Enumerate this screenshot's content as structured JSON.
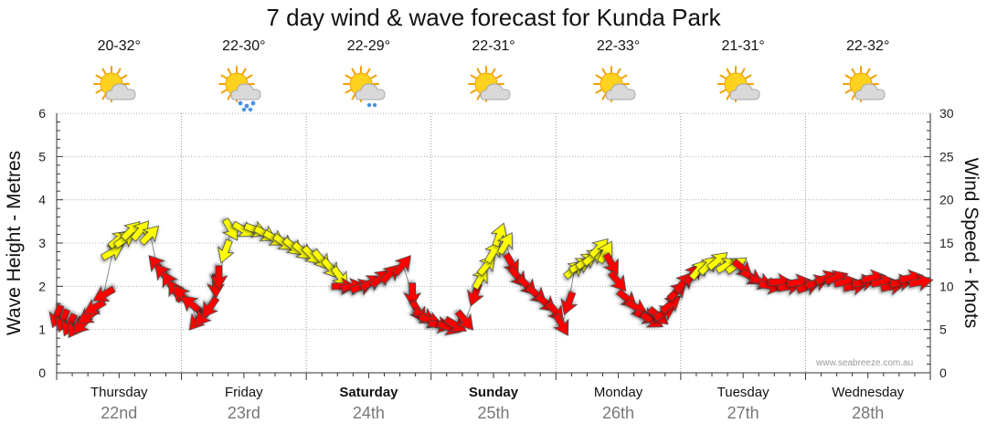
{
  "chart_data": {
    "type": "line",
    "title": "7 day wind & wave forecast for Kunda Park",
    "ylabel_left": "Wave Height - Metres",
    "ylabel_right": "Wind Speed - Knots",
    "ylim_left": [
      0,
      6
    ],
    "ylim_right": [
      0,
      30
    ],
    "yticks_left": [
      "0",
      "1",
      "2",
      "3",
      "4",
      "5",
      "6"
    ],
    "yticks_right": [
      "0",
      "5",
      "10",
      "15",
      "20",
      "25",
      "30"
    ],
    "grid": true,
    "days": [
      {
        "name": "Thursday",
        "date": "22nd",
        "bold": false,
        "temp": "20-32°",
        "weather": "partly-cloudy"
      },
      {
        "name": "Friday",
        "date": "23rd",
        "bold": false,
        "temp": "22-30°",
        "weather": "showers"
      },
      {
        "name": "Saturday",
        "date": "24th",
        "bold": true,
        "temp": "22-29°",
        "weather": "light-rain"
      },
      {
        "name": "Sunday",
        "date": "25th",
        "bold": true,
        "temp": "22-31°",
        "weather": "partly-cloudy"
      },
      {
        "name": "Monday",
        "date": "26th",
        "bold": false,
        "temp": "22-33°",
        "weather": "partly-cloudy"
      },
      {
        "name": "Tuesday",
        "date": "27th",
        "bold": false,
        "temp": "21-31°",
        "weather": "partly-cloudy"
      },
      {
        "name": "Wednesday",
        "date": "28th",
        "bold": false,
        "temp": "22-32°",
        "weather": "partly-cloudy"
      }
    ],
    "wind_series": {
      "name": "Wind Speed",
      "unit": "knots",
      "colors": {
        "light": "#ffff00",
        "strong": "#ff0000"
      },
      "points": [
        {
          "t": 0.0,
          "knots": 6.5,
          "dir": 200,
          "band": "strong"
        },
        {
          "t": 0.1,
          "knots": 6.0,
          "dir": 200,
          "band": "strong"
        },
        {
          "t": 0.2,
          "knots": 5.5,
          "dir": 205,
          "band": "strong"
        },
        {
          "t": 0.3,
          "knots": 5.2,
          "dir": 215,
          "band": "strong"
        },
        {
          "t": 0.4,
          "knots": 5.5,
          "dir": 225,
          "band": "strong"
        },
        {
          "t": 0.5,
          "knots": 6.5,
          "dir": 235,
          "band": "strong"
        },
        {
          "t": 0.6,
          "knots": 7.5,
          "dir": 240,
          "band": "strong"
        },
        {
          "t": 0.75,
          "knots": 9.0,
          "dir": 240,
          "band": "strong"
        },
        {
          "t": 0.9,
          "knots": 14.0,
          "dir": 60,
          "band": "light"
        },
        {
          "t": 1.0,
          "knots": 15.5,
          "dir": 50,
          "band": "light"
        },
        {
          "t": 1.1,
          "knots": 15.5,
          "dir": 55,
          "band": "light"
        },
        {
          "t": 1.2,
          "knots": 16.5,
          "dir": 45,
          "band": "light"
        },
        {
          "t": 1.35,
          "knots": 16.5,
          "dir": 40,
          "band": "light"
        },
        {
          "t": 1.5,
          "knots": 16.0,
          "dir": 45,
          "band": "light"
        },
        {
          "t": 1.6,
          "knots": 12.5,
          "dir": 320,
          "band": "strong"
        },
        {
          "t": 1.7,
          "knots": 11.5,
          "dir": 320,
          "band": "strong"
        },
        {
          "t": 1.8,
          "knots": 10.5,
          "dir": 330,
          "band": "strong"
        },
        {
          "t": 1.9,
          "knots": 9.5,
          "dir": 330,
          "band": "strong"
        },
        {
          "t": 2.0,
          "knots": 9.0,
          "dir": 320,
          "band": "strong"
        },
        {
          "t": 2.15,
          "knots": 8.0,
          "dir": 310,
          "band": "strong"
        },
        {
          "t": 2.25,
          "knots": 6.0,
          "dir": 220,
          "band": "strong"
        },
        {
          "t": 2.35,
          "knots": 6.5,
          "dir": 220,
          "band": "strong"
        },
        {
          "t": 2.45,
          "knots": 7.5,
          "dir": 215,
          "band": "strong"
        },
        {
          "t": 2.55,
          "knots": 10.0,
          "dir": 180,
          "band": "strong"
        },
        {
          "t": 2.6,
          "knots": 11.0,
          "dir": 180,
          "band": "strong"
        },
        {
          "t": 2.7,
          "knots": 14.0,
          "dir": 200,
          "band": "light"
        },
        {
          "t": 2.8,
          "knots": 16.5,
          "dir": 150,
          "band": "light"
        },
        {
          "t": 3.0,
          "knots": 16.5,
          "dir": 120,
          "band": "light"
        },
        {
          "t": 3.2,
          "knots": 16.5,
          "dir": 110,
          "band": "light"
        },
        {
          "t": 3.35,
          "knots": 16.0,
          "dir": 120,
          "band": "light"
        },
        {
          "t": 3.5,
          "knots": 15.5,
          "dir": 120,
          "band": "light"
        },
        {
          "t": 3.65,
          "knots": 15.0,
          "dir": 125,
          "band": "light"
        },
        {
          "t": 3.8,
          "knots": 14.5,
          "dir": 130,
          "band": "light"
        },
        {
          "t": 3.95,
          "knots": 14.0,
          "dir": 130,
          "band": "light"
        },
        {
          "t": 4.1,
          "knots": 13.5,
          "dir": 135,
          "band": "light"
        },
        {
          "t": 4.25,
          "knots": 13.0,
          "dir": 140,
          "band": "light"
        },
        {
          "t": 4.4,
          "knots": 12.0,
          "dir": 140,
          "band": "light"
        },
        {
          "t": 4.55,
          "knots": 11.0,
          "dir": 145,
          "band": "light"
        },
        {
          "t": 4.6,
          "knots": 10.0,
          "dir": 90,
          "band": "strong"
        },
        {
          "t": 4.75,
          "knots": 10.0,
          "dir": 80,
          "band": "strong"
        },
        {
          "t": 4.9,
          "knots": 10.0,
          "dir": 70,
          "band": "strong"
        },
        {
          "t": 5.05,
          "knots": 10.5,
          "dir": 60,
          "band": "strong"
        },
        {
          "t": 5.2,
          "knots": 11.0,
          "dir": 50,
          "band": "strong"
        },
        {
          "t": 5.35,
          "knots": 11.5,
          "dir": 45,
          "band": "strong"
        },
        {
          "t": 5.55,
          "knots": 12.5,
          "dir": 40,
          "band": "strong"
        },
        {
          "t": 5.7,
          "knots": 9.0,
          "dir": 180,
          "band": "strong"
        },
        {
          "t": 5.8,
          "knots": 7.0,
          "dir": 150,
          "band": "strong"
        },
        {
          "t": 5.9,
          "knots": 6.5,
          "dir": 120,
          "band": "strong"
        },
        {
          "t": 6.0,
          "knots": 6.0,
          "dir": 110,
          "band": "strong"
        },
        {
          "t": 6.15,
          "knots": 5.5,
          "dir": 100,
          "band": "strong"
        },
        {
          "t": 6.3,
          "knots": 5.2,
          "dir": 110,
          "band": "strong"
        },
        {
          "t": 6.4,
          "knots": 5.5,
          "dir": 120,
          "band": "strong"
        },
        {
          "t": 6.55,
          "knots": 6.0,
          "dir": 140,
          "band": "strong"
        },
        {
          "t": 6.7,
          "knots": 9.0,
          "dir": 200,
          "band": "strong"
        },
        {
          "t": 6.8,
          "knots": 11.0,
          "dir": 30,
          "band": "light"
        },
        {
          "t": 6.9,
          "knots": 12.5,
          "dir": 40,
          "band": "light"
        },
        {
          "t": 7.0,
          "knots": 14.0,
          "dir": 30,
          "band": "light"
        },
        {
          "t": 7.1,
          "knots": 16.0,
          "dir": 20,
          "band": "light"
        },
        {
          "t": 7.2,
          "knots": 15.0,
          "dir": 30,
          "band": "light"
        },
        {
          "t": 7.3,
          "knots": 12.5,
          "dir": 150,
          "band": "strong"
        },
        {
          "t": 7.4,
          "knots": 11.0,
          "dir": 140,
          "band": "strong"
        },
        {
          "t": 7.55,
          "knots": 10.0,
          "dir": 135,
          "band": "strong"
        },
        {
          "t": 7.7,
          "knots": 9.0,
          "dir": 130,
          "band": "strong"
        },
        {
          "t": 7.85,
          "knots": 8.0,
          "dir": 130,
          "band": "strong"
        },
        {
          "t": 8.0,
          "knots": 7.0,
          "dir": 140,
          "band": "strong"
        },
        {
          "t": 8.1,
          "knots": 5.5,
          "dir": 150,
          "band": "strong"
        },
        {
          "t": 8.2,
          "knots": 8.0,
          "dir": 200,
          "band": "strong"
        },
        {
          "t": 8.3,
          "knots": 12.0,
          "dir": 50,
          "band": "light"
        },
        {
          "t": 8.4,
          "knots": 12.5,
          "dir": 60,
          "band": "light"
        },
        {
          "t": 8.5,
          "knots": 13.0,
          "dir": 55,
          "band": "light"
        },
        {
          "t": 8.6,
          "knots": 13.5,
          "dir": 50,
          "band": "light"
        },
        {
          "t": 8.7,
          "knots": 14.5,
          "dir": 45,
          "band": "light"
        },
        {
          "t": 8.8,
          "knots": 14.0,
          "dir": 30,
          "band": "light"
        },
        {
          "t": 8.9,
          "knots": 12.5,
          "dir": 150,
          "band": "strong"
        },
        {
          "t": 9.0,
          "knots": 10.5,
          "dir": 140,
          "band": "strong"
        },
        {
          "t": 9.15,
          "knots": 8.5,
          "dir": 130,
          "band": "strong"
        },
        {
          "t": 9.3,
          "knots": 7.5,
          "dir": 120,
          "band": "strong"
        },
        {
          "t": 9.45,
          "knots": 6.5,
          "dir": 110,
          "band": "strong"
        },
        {
          "t": 9.55,
          "knots": 6.0,
          "dir": 120,
          "band": "strong"
        },
        {
          "t": 9.65,
          "knots": 6.5,
          "dir": 130,
          "band": "strong"
        },
        {
          "t": 9.75,
          "knots": 7.0,
          "dir": 60,
          "band": "strong"
        },
        {
          "t": 9.85,
          "knots": 8.0,
          "dir": 50,
          "band": "strong"
        },
        {
          "t": 9.95,
          "knots": 9.5,
          "dir": 45,
          "band": "strong"
        },
        {
          "t": 10.05,
          "knots": 10.5,
          "dir": 40,
          "band": "strong"
        },
        {
          "t": 10.2,
          "knots": 11.5,
          "dir": 35,
          "band": "strong"
        },
        {
          "t": 10.3,
          "knots": 12.0,
          "dir": 40,
          "band": "light"
        },
        {
          "t": 10.45,
          "knots": 12.5,
          "dir": 45,
          "band": "light"
        },
        {
          "t": 10.6,
          "knots": 13.0,
          "dir": 50,
          "band": "light"
        },
        {
          "t": 10.75,
          "knots": 12.5,
          "dir": 60,
          "band": "light"
        },
        {
          "t": 10.9,
          "knots": 12.5,
          "dir": 55,
          "band": "light"
        },
        {
          "t": 11.0,
          "knots": 12.0,
          "dir": 130,
          "band": "strong"
        },
        {
          "t": 11.15,
          "knots": 11.0,
          "dir": 120,
          "band": "strong"
        },
        {
          "t": 11.3,
          "knots": 10.5,
          "dir": 110,
          "band": "strong"
        },
        {
          "t": 11.45,
          "knots": 10.0,
          "dir": 100,
          "band": "strong"
        },
        {
          "t": 11.6,
          "knots": 10.5,
          "dir": 90,
          "band": "strong"
        },
        {
          "t": 11.75,
          "knots": 10.0,
          "dir": 80,
          "band": "strong"
        },
        {
          "t": 11.9,
          "knots": 10.5,
          "dir": 80,
          "band": "strong"
        },
        {
          "t": 12.05,
          "knots": 10.0,
          "dir": 70,
          "band": "strong"
        },
        {
          "t": 12.2,
          "knots": 10.5,
          "dir": 70,
          "band": "strong"
        },
        {
          "t": 12.35,
          "knots": 11.0,
          "dir": 70,
          "band": "strong"
        },
        {
          "t": 12.5,
          "knots": 11.0,
          "dir": 70,
          "band": "strong"
        },
        {
          "t": 12.65,
          "knots": 10.5,
          "dir": 80,
          "band": "strong"
        },
        {
          "t": 12.8,
          "knots": 10.0,
          "dir": 80,
          "band": "strong"
        },
        {
          "t": 12.95,
          "knots": 10.5,
          "dir": 80,
          "band": "strong"
        },
        {
          "t": 13.1,
          "knots": 11.0,
          "dir": 80,
          "band": "strong"
        },
        {
          "t": 13.25,
          "knots": 10.5,
          "dir": 80,
          "band": "strong"
        },
        {
          "t": 13.4,
          "knots": 10.0,
          "dir": 80,
          "band": "strong"
        },
        {
          "t": 13.55,
          "knots": 10.5,
          "dir": 80,
          "band": "strong"
        },
        {
          "t": 13.7,
          "knots": 11.0,
          "dir": 80,
          "band": "strong"
        },
        {
          "t": 13.85,
          "knots": 10.5,
          "dir": 80,
          "band": "strong"
        }
      ]
    }
  },
  "credit": "www.seabreeze.com.au"
}
